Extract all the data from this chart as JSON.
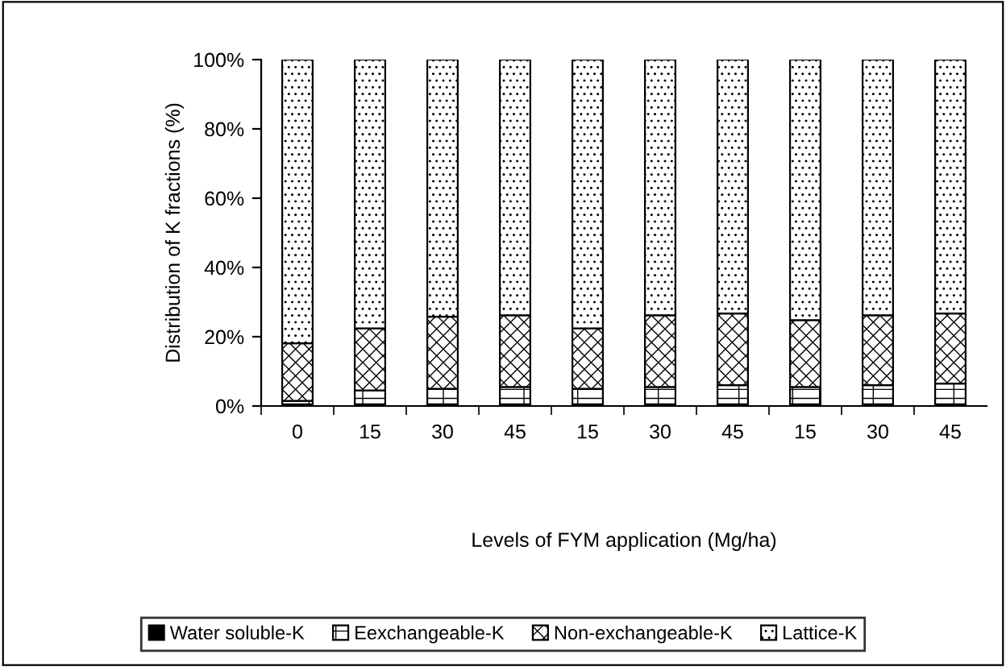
{
  "chart_data": {
    "type": "bar",
    "stacked": true,
    "xlabel": "Levels of FYM application (Mg/ha)",
    "ylabel": "Distribution of K fractions (%)",
    "categories": [
      "0",
      "15",
      "30",
      "45",
      "15",
      "30",
      "45",
      "15",
      "30",
      "45"
    ],
    "series": [
      {
        "name": "Water soluble-K",
        "color": "#000000",
        "values": [
          0.5,
          0.5,
          0.5,
          0.5,
          0.5,
          0.5,
          0.5,
          0.5,
          0.5,
          0.5
        ]
      },
      {
        "name": "Eexchangeable-K",
        "color": "#000000",
        "values": [
          1.0,
          4.0,
          4.5,
          5.0,
          4.5,
          5.0,
          5.5,
          5.0,
          5.5,
          6.0
        ]
      },
      {
        "name": "Non-exchangeable-K",
        "color": "#000000",
        "values": [
          16.6,
          17.9,
          20.8,
          20.7,
          17.4,
          20.7,
          20.7,
          19.3,
          20.2,
          20.2
        ]
      },
      {
        "name": "Lattice-K",
        "color": "#000000",
        "values": [
          81.9,
          77.6,
          74.2,
          73.8,
          77.6,
          73.8,
          73.3,
          75.2,
          73.8,
          73.3
        ]
      }
    ],
    "ylim": [
      0,
      100
    ],
    "yticks": [
      {
        "value": 0,
        "label": "0%"
      },
      {
        "value": 20,
        "label": "20%"
      },
      {
        "value": 40,
        "label": "40%"
      },
      {
        "value": 60,
        "label": "60%"
      },
      {
        "value": 80,
        "label": "80%"
      },
      {
        "value": 100,
        "label": "100%"
      }
    ],
    "legend": "bottom",
    "grid": false
  }
}
